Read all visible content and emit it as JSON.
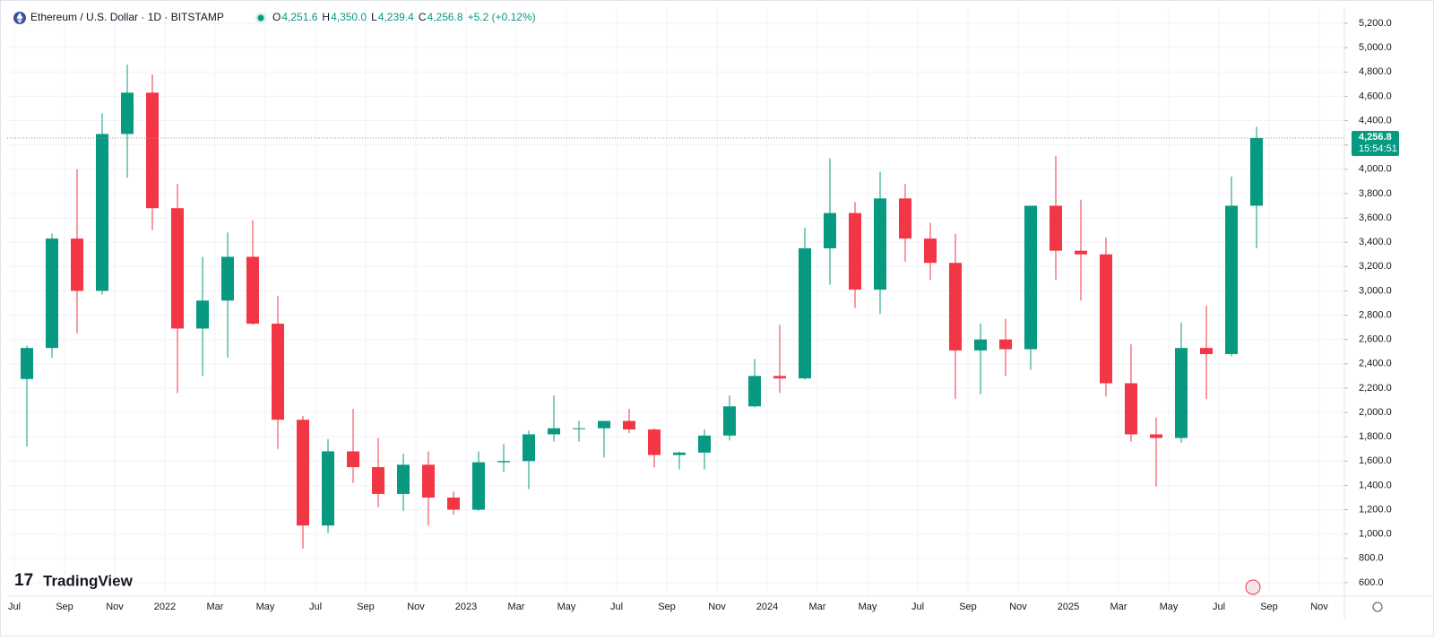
{
  "chart_data": {
    "type": "candlestick",
    "title": "Ethereum / U.S. Dollar · 1D · BITSTAMP",
    "ohlc": {
      "open_key": "O",
      "open": "4,251.6",
      "high_key": "H",
      "high": "4,350.0",
      "low_key": "L",
      "low": "4,239.4",
      "close_key": "C",
      "close": "4,256.8",
      "change": "+5.2 (+0.12%)"
    },
    "last_price": {
      "value": 4256.8,
      "label": "4,256.8"
    },
    "countdown": "15:54:51",
    "brand": "TradingView",
    "up_color": "#089981",
    "down_color": "#f23645",
    "grid": true,
    "x": [
      "2021-07",
      "2021-08",
      "2021-09",
      "2021-10",
      "2021-11",
      "2021-12",
      "2022-01",
      "2022-02",
      "2022-03",
      "2022-04",
      "2022-05",
      "2022-06",
      "2022-07",
      "2022-08",
      "2022-09",
      "2022-10",
      "2022-11",
      "2022-12",
      "2023-01",
      "2023-02",
      "2023-03",
      "2023-04",
      "2023-05",
      "2023-06",
      "2023-07",
      "2023-08",
      "2023-09",
      "2023-10",
      "2023-11",
      "2023-12",
      "2024-01",
      "2024-02",
      "2024-03",
      "2024-04",
      "2024-05",
      "2024-06",
      "2024-07",
      "2024-08",
      "2024-09",
      "2024-10",
      "2024-11",
      "2024-12",
      "2025-01",
      "2025-02",
      "2025-03",
      "2025-04",
      "2025-05",
      "2025-06",
      "2025-07",
      "2025-08"
    ],
    "open": [
      2275,
      2530,
      3430,
      3000,
      4290,
      4630,
      3680,
      2690,
      2920,
      3280,
      2730,
      1940,
      1070,
      1680,
      1550,
      1330,
      1570,
      1300,
      1200,
      1590,
      1600,
      1820,
      1870,
      1870,
      1930,
      1860,
      1650,
      1670,
      1810,
      2050,
      2300,
      2280,
      3350,
      3640,
      3010,
      3760,
      3430,
      3230,
      2510,
      2600,
      2520,
      3700,
      3330,
      3300,
      2240,
      1820,
      1790,
      2530,
      2480,
      3700
    ],
    "high": [
      2550,
      3470,
      4000,
      4460,
      4860,
      4780,
      3880,
      3280,
      3480,
      3580,
      2960,
      1970,
      1780,
      2030,
      1790,
      1660,
      1680,
      1350,
      1680,
      1740,
      1850,
      2140,
      1930,
      1930,
      2030,
      1870,
      1680,
      1860,
      2140,
      2440,
      2720,
      3520,
      4090,
      3730,
      3980,
      3880,
      3560,
      3470,
      2730,
      2770,
      3680,
      4110,
      3750,
      3440,
      2560,
      1960,
      2740,
      2880,
      3940,
      4350
    ],
    "low": [
      1720,
      2450,
      2650,
      2970,
      3930,
      3500,
      2160,
      2300,
      2450,
      2720,
      1700,
      880,
      1010,
      1420,
      1220,
      1190,
      1070,
      1160,
      1190,
      1510,
      1370,
      1760,
      1760,
      1630,
      1830,
      1550,
      1530,
      1530,
      1770,
      2040,
      2160,
      2270,
      3050,
      2860,
      2810,
      3240,
      3090,
      2110,
      2150,
      2300,
      2350,
      3090,
      2920,
      2130,
      1760,
      1390,
      1750,
      2110,
      2460,
      3350
    ],
    "close": [
      2530,
      3430,
      3000,
      4290,
      4630,
      3680,
      2690,
      2920,
      3280,
      2730,
      1940,
      1070,
      1680,
      1550,
      1330,
      1570,
      1300,
      1200,
      1590,
      1600,
      1820,
      1870,
      1870,
      1930,
      1860,
      1650,
      1670,
      1810,
      2050,
      2300,
      2280,
      3350,
      3640,
      3010,
      3760,
      3430,
      3230,
      2510,
      2600,
      2520,
      3700,
      3330,
      3300,
      2240,
      1820,
      1790,
      2530,
      2480,
      3700,
      4256.8
    ],
    "xlim": [
      "2021-06",
      "2025-12"
    ],
    "xticks": [
      {
        "value": "2021-07",
        "label": "Jul"
      },
      {
        "value": "2021-09",
        "label": "Sep"
      },
      {
        "value": "2021-11",
        "label": "Nov"
      },
      {
        "value": "2022-01",
        "label": "2022"
      },
      {
        "value": "2022-03",
        "label": "Mar"
      },
      {
        "value": "2022-05",
        "label": "May"
      },
      {
        "value": "2022-07",
        "label": "Jul"
      },
      {
        "value": "2022-09",
        "label": "Sep"
      },
      {
        "value": "2022-11",
        "label": "Nov"
      },
      {
        "value": "2023-01",
        "label": "2023"
      },
      {
        "value": "2023-03",
        "label": "Mar"
      },
      {
        "value": "2023-05",
        "label": "May"
      },
      {
        "value": "2023-07",
        "label": "Jul"
      },
      {
        "value": "2023-09",
        "label": "Sep"
      },
      {
        "value": "2023-11",
        "label": "Nov"
      },
      {
        "value": "2024-01",
        "label": "2024"
      },
      {
        "value": "2024-03",
        "label": "Mar"
      },
      {
        "value": "2024-05",
        "label": "May"
      },
      {
        "value": "2024-07",
        "label": "Jul"
      },
      {
        "value": "2024-09",
        "label": "Sep"
      },
      {
        "value": "2024-11",
        "label": "Nov"
      },
      {
        "value": "2025-01",
        "label": "2025"
      },
      {
        "value": "2025-03",
        "label": "Mar"
      },
      {
        "value": "2025-05",
        "label": "May"
      },
      {
        "value": "2025-07",
        "label": "Jul"
      },
      {
        "value": "2025-09",
        "label": "Sep"
      },
      {
        "value": "2025-11",
        "label": "Nov"
      }
    ],
    "ylim": [
      489,
      5333
    ],
    "yticks": [
      {
        "value": 600,
        "label": "600.0"
      },
      {
        "value": 800,
        "label": "800.0"
      },
      {
        "value": 1000,
        "label": "1,000.0"
      },
      {
        "value": 1200,
        "label": "1,200.0"
      },
      {
        "value": 1400,
        "label": "1,400.0"
      },
      {
        "value": 1600,
        "label": "1,600.0"
      },
      {
        "value": 1800,
        "label": "1,800.0"
      },
      {
        "value": 2000,
        "label": "2,000.0"
      },
      {
        "value": 2200,
        "label": "2,200.0"
      },
      {
        "value": 2400,
        "label": "2,400.0"
      },
      {
        "value": 2600,
        "label": "2,600.0"
      },
      {
        "value": 2800,
        "label": "2,800.0"
      },
      {
        "value": 3000,
        "label": "3,000.0"
      },
      {
        "value": 3200,
        "label": "3,200.0"
      },
      {
        "value": 3400,
        "label": "3,400.0"
      },
      {
        "value": 3600,
        "label": "3,600.0"
      },
      {
        "value": 3800,
        "label": "3,800.0"
      },
      {
        "value": 4000,
        "label": "4,000.0"
      },
      {
        "value": 4200,
        "label": "4,200.0"
      },
      {
        "value": 4400,
        "label": "4,400.0"
      },
      {
        "value": 4600,
        "label": "4,600.0"
      },
      {
        "value": 4800,
        "label": "4,800.0"
      },
      {
        "value": 5000,
        "label": "5,000.0"
      },
      {
        "value": 5200,
        "label": "5,200.0"
      }
    ]
  }
}
